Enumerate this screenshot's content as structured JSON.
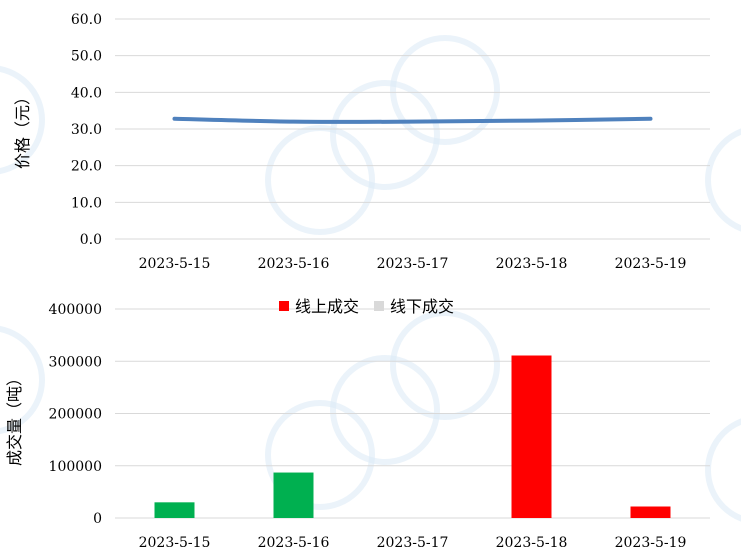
{
  "chart_data": [
    {
      "type": "line",
      "categories": [
        "2023-5-15",
        "2023-5-16",
        "2023-5-17",
        "2023-5-18",
        "2023-5-19"
      ],
      "values": [
        32.8,
        32.0,
        32.0,
        32.3,
        32.8
      ],
      "ylabel": "价格（元）",
      "ylim": [
        0,
        60
      ],
      "yticks": [
        "0.0",
        "10.0",
        "20.0",
        "30.0",
        "40.0",
        "50.0",
        "60.0"
      ],
      "grid": true,
      "color": "#4f81bd"
    },
    {
      "type": "bar",
      "categories": [
        "2023-5-15",
        "2023-5-16",
        "2023-5-17",
        "2023-5-18",
        "2023-5-19"
      ],
      "series": [
        {
          "name": "线上成交",
          "values": [
            0,
            0,
            0,
            311000,
            22000
          ],
          "color": "#ff0000"
        },
        {
          "name": "线下成交",
          "values": [
            0,
            0,
            0,
            0,
            0
          ],
          "color": "#d9d9d9"
        }
      ],
      "highlight_values": [
        30000,
        87000,
        0,
        0,
        0
      ],
      "highlight_color": "#00b050",
      "ylabel": "成交量（吨）",
      "ylim": [
        0,
        400000
      ],
      "yticks": [
        "0",
        "100000",
        "200000",
        "300000",
        "400000"
      ],
      "legend": "top-center",
      "grid": true
    }
  ]
}
